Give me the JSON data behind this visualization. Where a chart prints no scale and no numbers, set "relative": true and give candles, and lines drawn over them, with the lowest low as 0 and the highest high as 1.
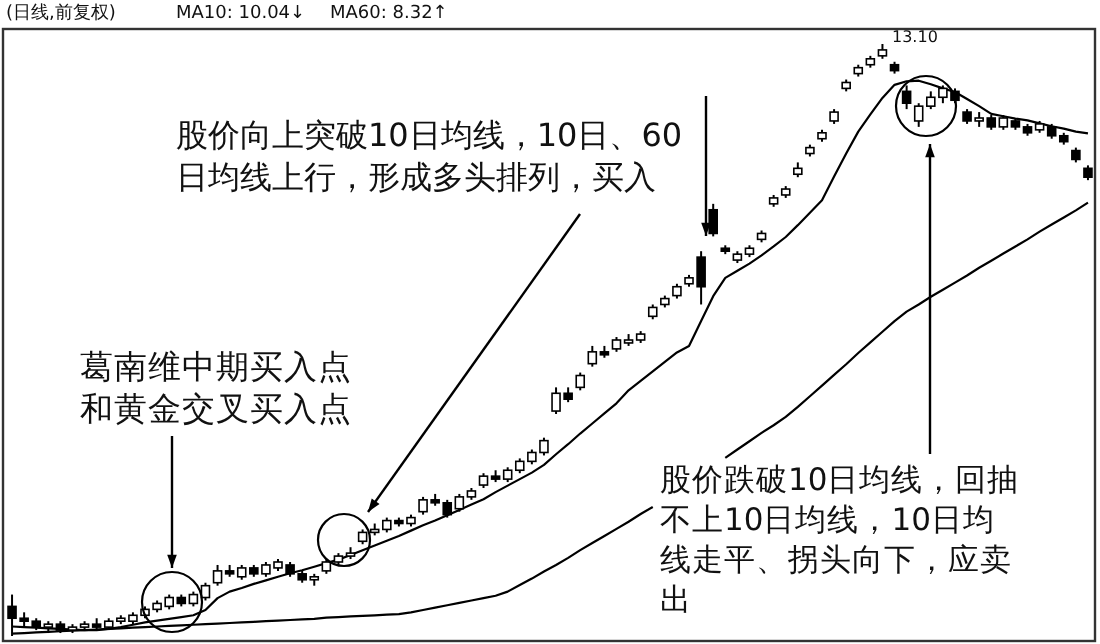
{
  "chart_data": {
    "type": "candlestick",
    "relative": true,
    "color": "#000000",
    "categories": [
      null,
      null,
      null,
      null,
      null,
      null,
      null,
      null,
      null,
      null,
      null,
      null,
      null,
      null,
      null,
      null,
      null,
      null,
      null,
      null,
      null,
      null,
      null,
      null,
      null,
      null,
      null,
      null,
      null,
      null,
      null,
      null,
      null,
      null,
      null,
      null,
      null,
      null,
      null,
      null,
      null,
      null,
      null,
      null,
      null,
      null,
      null,
      null,
      null,
      null,
      null,
      null,
      null,
      null,
      null,
      null,
      null,
      null,
      null,
      null,
      null,
      null,
      null,
      null,
      null,
      null,
      null,
      null,
      null,
      null,
      null,
      null,
      null,
      null,
      null,
      null,
      null,
      null,
      null,
      null,
      null,
      null,
      null,
      null,
      null,
      null,
      null,
      null,
      null,
      null
    ],
    "ohlc": [
      [
        0.05,
        0.07,
        0,
        0.03
      ],
      [
        0.03,
        0.04,
        0.015,
        0.025
      ],
      [
        0.025,
        0.03,
        0.01,
        0.015
      ],
      [
        0.015,
        0.025,
        0.005,
        0.02
      ],
      [
        0.02,
        0.025,
        0.005,
        0.01
      ],
      [
        0.01,
        0.02,
        0.005,
        0.015
      ],
      [
        0.015,
        0.025,
        0.01,
        0.02
      ],
      [
        0.02,
        0.03,
        0.01,
        0.015
      ],
      [
        0.015,
        0.03,
        0.01,
        0.025
      ],
      [
        0.025,
        0.035,
        0.02,
        0.03
      ],
      [
        0.025,
        0.04,
        0.02,
        0.035
      ],
      [
        0.035,
        0.05,
        0.03,
        0.045
      ],
      [
        0.045,
        0.06,
        0.04,
        0.055
      ],
      [
        0.05,
        0.07,
        0.045,
        0.065
      ],
      [
        0.065,
        0.07,
        0.05,
        0.055
      ],
      [
        0.055,
        0.075,
        0.05,
        0.07
      ],
      [
        0.065,
        0.09,
        0.06,
        0.085
      ],
      [
        0.09,
        0.12,
        0.085,
        0.11
      ],
      [
        0.11,
        0.12,
        0.1,
        0.105
      ],
      [
        0.1,
        0.12,
        0.095,
        0.115
      ],
      [
        0.115,
        0.12,
        0.1,
        0.105
      ],
      [
        0.105,
        0.125,
        0.1,
        0.12
      ],
      [
        0.115,
        0.13,
        0.11,
        0.125
      ],
      [
        0.12,
        0.125,
        0.1,
        0.105
      ],
      [
        0.105,
        0.11,
        0.09,
        0.095
      ],
      [
        0.095,
        0.105,
        0.085,
        0.1
      ],
      [
        0.11,
        0.13,
        0.105,
        0.125
      ],
      [
        0.125,
        0.14,
        0.12,
        0.135
      ],
      [
        0.135,
        0.15,
        0.13,
        0.14
      ],
      [
        0.16,
        0.18,
        0.155,
        0.175
      ],
      [
        0.175,
        0.19,
        0.17,
        0.18
      ],
      [
        0.18,
        0.2,
        0.175,
        0.195
      ],
      [
        0.195,
        0.2,
        0.185,
        0.19
      ],
      [
        0.19,
        0.205,
        0.185,
        0.2
      ],
      [
        0.21,
        0.235,
        0.205,
        0.23
      ],
      [
        0.23,
        0.24,
        0.22,
        0.225
      ],
      [
        0.225,
        0.23,
        0.2,
        0.205
      ],
      [
        0.215,
        0.24,
        0.21,
        0.235
      ],
      [
        0.235,
        0.25,
        0.23,
        0.245
      ],
      [
        0.255,
        0.275,
        0.25,
        0.27
      ],
      [
        0.27,
        0.28,
        0.26,
        0.265
      ],
      [
        0.265,
        0.285,
        0.26,
        0.28
      ],
      [
        0.28,
        0.3,
        0.275,
        0.295
      ],
      [
        0.295,
        0.315,
        0.29,
        0.31
      ],
      [
        0.31,
        0.335,
        0.305,
        0.33
      ],
      [
        0.38,
        0.42,
        0.375,
        0.41
      ],
      [
        0.41,
        0.42,
        0.395,
        0.4
      ],
      [
        0.42,
        0.445,
        0.415,
        0.44
      ],
      [
        0.46,
        0.49,
        0.455,
        0.48
      ],
      [
        0.48,
        0.49,
        0.47,
        0.475
      ],
      [
        0.485,
        0.505,
        0.48,
        0.5
      ],
      [
        0.495,
        0.51,
        0.49,
        0.5
      ],
      [
        0.5,
        0.515,
        0.495,
        0.51
      ],
      [
        0.54,
        0.56,
        0.535,
        0.555
      ],
      [
        0.56,
        0.575,
        0.555,
        0.57
      ],
      [
        0.575,
        0.595,
        0.57,
        0.59
      ],
      [
        0.595,
        0.61,
        0.59,
        0.605
      ],
      [
        0.64,
        0.65,
        0.56,
        0.59
      ],
      [
        0.72,
        0.73,
        0.675,
        0.68
      ],
      [
        0.655,
        0.66,
        0.645,
        0.65
      ],
      [
        0.635,
        0.65,
        0.63,
        0.645
      ],
      [
        0.645,
        0.66,
        0.64,
        0.655
      ],
      [
        0.67,
        0.685,
        0.665,
        0.68
      ],
      [
        0.73,
        0.745,
        0.725,
        0.74
      ],
      [
        0.745,
        0.76,
        0.74,
        0.755
      ],
      [
        0.78,
        0.8,
        0.775,
        0.79
      ],
      [
        0.815,
        0.83,
        0.81,
        0.825
      ],
      [
        0.84,
        0.855,
        0.835,
        0.85
      ],
      [
        0.87,
        0.89,
        0.865,
        0.885
      ],
      [
        0.925,
        0.94,
        0.92,
        0.935
      ],
      [
        0.95,
        0.965,
        0.945,
        0.96
      ],
      [
        0.965,
        0.98,
        0.96,
        0.975
      ],
      [
        0.98,
        1,
        0.975,
        0.99
      ],
      [
        0.965,
        0.97,
        0.95,
        0.955
      ],
      [
        0.92,
        0.93,
        0.89,
        0.9
      ],
      [
        0.87,
        0.9,
        0.86,
        0.895
      ],
      [
        0.895,
        0.92,
        0.89,
        0.91
      ],
      [
        0.91,
        0.93,
        0.9,
        0.925
      ],
      [
        0.92,
        0.925,
        0.9,
        0.905
      ],
      [
        0.885,
        0.89,
        0.865,
        0.87
      ],
      [
        0.87,
        0.885,
        0.86,
        0.875
      ],
      [
        0.875,
        0.88,
        0.855,
        0.86
      ],
      [
        0.86,
        0.88,
        0.855,
        0.875
      ],
      [
        0.87,
        0.875,
        0.855,
        0.86
      ],
      [
        0.86,
        0.865,
        0.845,
        0.85
      ],
      [
        0.855,
        0.87,
        0.85,
        0.865
      ],
      [
        0.86,
        0.865,
        0.84,
        0.845
      ],
      [
        0.845,
        0.85,
        0.83,
        0.835
      ],
      [
        0.82,
        0.825,
        0.8,
        0.805
      ],
      [
        0.79,
        0.795,
        0.77,
        0.775
      ]
    ],
    "series": [
      {
        "type": "line",
        "color": "#000000",
        "values": [
          0.016,
          0.015,
          0.014,
          0.013,
          0.012,
          0.011,
          0.01,
          0.01,
          0.012,
          0.015,
          0.019,
          0.023,
          0.026,
          0.029,
          0.032,
          0.035,
          0.044,
          0.064,
          0.075,
          0.081,
          0.088,
          0.094,
          0.1,
          0.106,
          0.111,
          0.117,
          0.123,
          0.129,
          0.137,
          0.145,
          0.153,
          0.161,
          0.169,
          0.178,
          0.187,
          0.195,
          0.204,
          0.213,
          0.222,
          0.231,
          0.243,
          0.254,
          0.265,
          0.276,
          0.289,
          0.307,
          0.324,
          0.342,
          0.359,
          0.376,
          0.393,
          0.415,
          0.431,
          0.447,
          0.463,
          0.479,
          0.49,
          0.532,
          0.574,
          0.605,
          0.617,
          0.629,
          0.643,
          0.658,
          0.674,
          0.694,
          0.715,
          0.736,
          0.776,
          0.815,
          0.852,
          0.881,
          0.909,
          0.931,
          0.937,
          0.938,
          0.932,
          0.925,
          0.919,
          0.907,
          0.895,
          0.882,
          0.878,
          0.874,
          0.871,
          0.866,
          0.861,
          0.857,
          0.852,
          0.849
        ]
      },
      {
        "type": "line",
        "color": "#000000",
        "values": [
          0.004,
          0.005,
          0.006,
          0.007,
          0.008,
          0.009,
          0.01,
          0.011,
          0.012,
          0.013,
          0.014,
          0.015,
          0.016,
          0.017,
          0.018,
          0.019,
          0.02,
          0.021,
          0.022,
          0.023,
          0.024,
          0.025,
          0.026,
          0.027,
          0.028,
          0.029,
          0.031,
          0.032,
          0.033,
          0.034,
          0.035,
          0.036,
          0.037,
          0.04,
          0.044,
          0.048,
          0.052,
          0.056,
          0.06,
          0.064,
          0.068,
          0.075,
          0.086,
          0.097,
          0.109,
          0.12,
          0.132,
          0.145,
          0.157,
          0.169,
          0.181,
          0.193,
          0.206,
          0.218,
          null,
          null,
          null,
          null,
          null,
          0.301,
          0.315,
          0.329,
          0.343,
          0.356,
          0.37,
          0.387,
          0.405,
          0.423,
          0.441,
          0.459,
          0.478,
          0.496,
          0.514,
          0.532,
          0.548,
          0.56,
          0.573,
          0.585,
          0.597,
          0.609,
          0.622,
          0.634,
          0.646,
          0.658,
          0.67,
          0.683,
          0.695,
          0.707,
          0.719,
          0.732
        ]
      }
    ],
    "annotations": [
      "(日线,前复权)",
      "MA10: 10.04↓",
      "MA60: 8.32↑",
      "13.10",
      "股价向上突破10日均线，10日、60日均线上行，形成多头排列，买入",
      "葛南维中期买入点和黄金交叉买入点",
      "股价跌破10日均线，回抽不上10日均线，10日均线走平、拐头向下，应卖出"
    ]
  }
}
